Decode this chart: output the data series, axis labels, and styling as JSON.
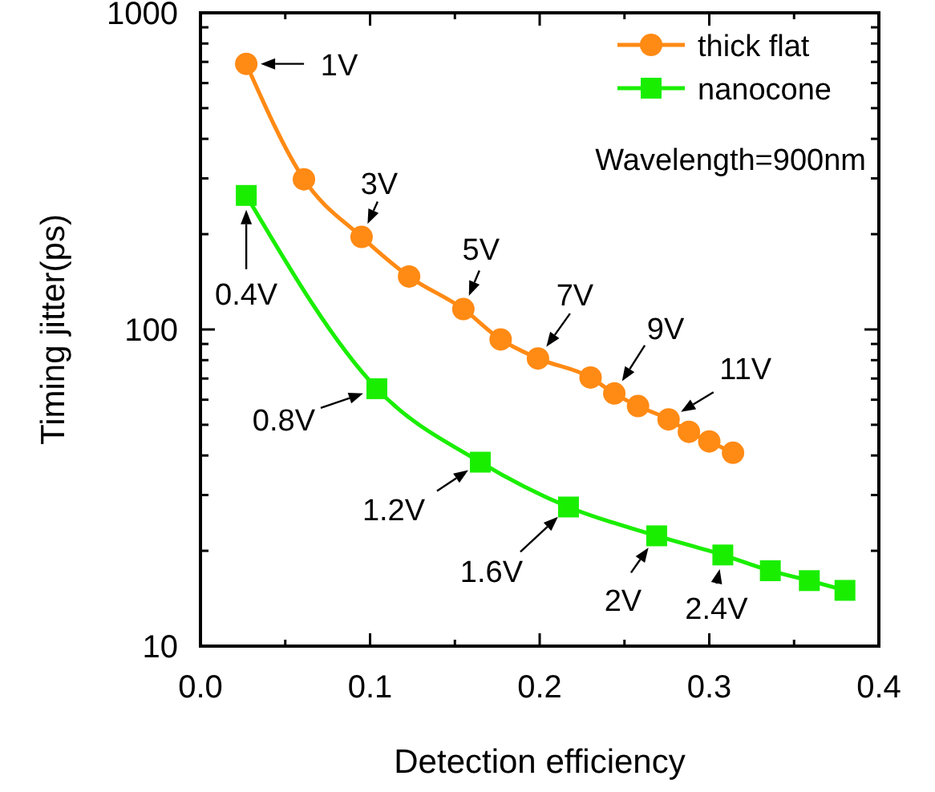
{
  "chart_data": {
    "type": "line",
    "xlabel": "Detection efficiency",
    "ylabel": "Timing jitter(ps)",
    "log": "y",
    "xlim": [
      0,
      0.4
    ],
    "ylim": [
      10,
      1000
    ],
    "xticks": [
      {
        "value": 0,
        "label": "0.0"
      },
      {
        "value": 0.05,
        "label": null
      },
      {
        "value": 0.1,
        "label": "0.1"
      },
      {
        "value": 0.15,
        "label": null
      },
      {
        "value": 0.2,
        "label": "0.2"
      },
      {
        "value": 0.25,
        "label": null
      },
      {
        "value": 0.3,
        "label": "0.3"
      },
      {
        "value": 0.35,
        "label": null
      },
      {
        "value": 0.4,
        "label": "0.4"
      }
    ],
    "yticks": [
      10,
      {
        "value": 20,
        "label": null
      },
      {
        "value": 30,
        "label": null
      },
      {
        "value": 40,
        "label": null
      },
      {
        "value": 50,
        "label": null
      },
      {
        "value": 60,
        "label": null
      },
      {
        "value": 70,
        "label": null
      },
      {
        "value": 80,
        "label": null
      },
      {
        "value": 90,
        "label": null
      },
      100,
      {
        "value": 200,
        "label": null
      },
      {
        "value": 300,
        "label": null
      },
      {
        "value": 400,
        "label": null
      },
      {
        "value": 500,
        "label": null
      },
      {
        "value": 600,
        "label": null
      },
      {
        "value": 700,
        "label": null
      },
      {
        "value": 800,
        "label": null
      },
      {
        "value": 900,
        "label": null
      },
      1000
    ],
    "grid": false,
    "legend": "top right",
    "line_style": "solid",
    "series": [
      {
        "name": "thick flat",
        "color": "#ff8a14",
        "marker": "circle",
        "x": [
          0.027,
          0.061,
          0.095,
          0.123,
          0.155,
          0.177,
          0.199,
          0.23,
          0.244,
          0.258,
          0.276,
          0.288,
          0.3,
          0.314
        ],
        "values": [
          690,
          298,
          196,
          147,
          116,
          93,
          81,
          70.5,
          62.8,
          57.3,
          52,
          47.5,
          44.3,
          40.8
        ]
      },
      {
        "name": "nanocone",
        "color": "#1aee00",
        "marker": "square",
        "x": [
          0.027,
          0.104,
          0.165,
          0.217,
          0.269,
          0.308,
          0.336,
          0.359,
          0.38
        ],
        "values": [
          265,
          65,
          38.1,
          27.5,
          22.3,
          19.4,
          17.3,
          16.1,
          15
        ]
      }
    ],
    "annotations": [
      "Wavelength=900nm",
      {
        "text": "1V",
        "x": 0.027,
        "y": 690
      },
      {
        "text": "3V",
        "x": 0.095,
        "y": 196
      },
      {
        "text": "5V",
        "x": 0.155,
        "y": 116
      },
      {
        "text": "7V",
        "x": 0.199,
        "y": 81
      },
      {
        "text": "9V",
        "x": 0.244,
        "y": 62.8
      },
      {
        "text": "11V",
        "x": 0.276,
        "y": 52
      },
      {
        "text": "0.4V",
        "x": 0.027,
        "y": 265
      },
      {
        "text": "0.8V",
        "x": 0.104,
        "y": 65
      },
      {
        "text": "1.2V",
        "x": 0.165,
        "y": 38.1
      },
      {
        "text": "1.6V",
        "x": 0.217,
        "y": 27.5
      },
      {
        "text": "2V",
        "x": 0.269,
        "y": 22.3
      },
      {
        "text": "2.4V",
        "x": 0.308,
        "y": 19.4
      }
    ]
  }
}
